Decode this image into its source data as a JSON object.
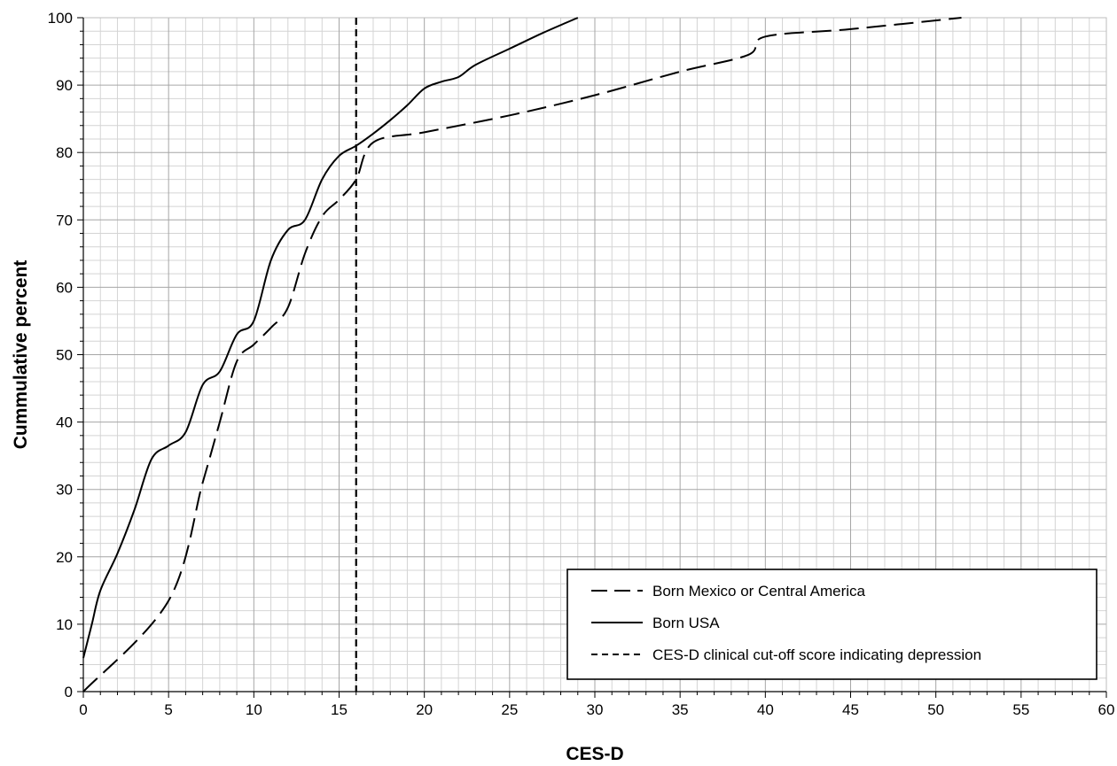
{
  "chart_data": {
    "type": "line",
    "title": "",
    "xlabel": "CES-D",
    "ylabel": "Cummulative percent",
    "xlim": [
      0,
      60
    ],
    "ylim": [
      0,
      100
    ],
    "x_ticks": [
      0,
      5,
      10,
      15,
      20,
      25,
      30,
      35,
      40,
      45,
      50,
      55,
      60
    ],
    "y_ticks": [
      0,
      10,
      20,
      30,
      40,
      50,
      60,
      70,
      80,
      90,
      100
    ],
    "grid": true,
    "legend_position": "bottom-right",
    "series": [
      {
        "name": "Born Mexico or Central America",
        "style": "long-dash",
        "color": "#000000",
        "x": [
          0,
          5,
          7,
          8,
          9,
          10,
          11,
          12,
          13,
          14,
          15,
          16,
          17,
          20,
          25,
          30,
          35,
          39,
          40,
          45,
          51.5
        ],
        "y": [
          0,
          13.5,
          31,
          40,
          49,
          51.5,
          54,
          57,
          65,
          70.5,
          73,
          76,
          81.5,
          83,
          85.5,
          88.5,
          92,
          94.5,
          97.2,
          98.3,
          100
        ]
      },
      {
        "name": "Born USA",
        "style": "solid",
        "color": "#000000",
        "x": [
          0,
          0.5,
          1,
          2,
          3,
          4,
          5,
          6,
          7,
          8,
          9,
          10,
          11,
          12,
          13,
          14,
          15,
          16,
          17,
          18,
          19,
          20,
          21,
          22,
          23,
          25,
          27,
          29
        ],
        "y": [
          5,
          10,
          15,
          20.5,
          27,
          34.5,
          36.5,
          38.5,
          45.5,
          47.5,
          53,
          55,
          64,
          68.5,
          70,
          76,
          79.5,
          81,
          82.8,
          84.8,
          87,
          89.5,
          90.5,
          91.2,
          93,
          95.4,
          97.8,
          100
        ]
      }
    ],
    "reference_lines": [
      {
        "name": "CES-D clinical cut-off score indicating depression",
        "x": 16,
        "style": "short-dash",
        "color": "#000000"
      }
    ],
    "legend": [
      "Born Mexico or Central America",
      "Born USA",
      "CES-D clinical cut-off score indicating depression"
    ]
  }
}
